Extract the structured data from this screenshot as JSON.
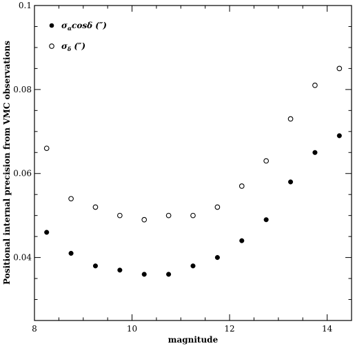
{
  "chart_data": {
    "type": "scatter",
    "xlabel": "magnitude",
    "ylabel": "Positional internal precision from VMC observations",
    "xlim": [
      8,
      14.5
    ],
    "ylim": [
      0.025,
      0.1
    ],
    "x_ticks": [
      "8",
      "10",
      "12",
      "14"
    ],
    "y_ticks": [
      "0.04",
      "0.06",
      "0.08",
      "0.1"
    ],
    "grid": false,
    "legend_position": "top-left",
    "series": [
      {
        "name": "σαcosδ (″)",
        "marker": "filled-circle",
        "x": [
          8.25,
          8.75,
          9.25,
          9.75,
          10.25,
          10.75,
          11.25,
          11.75,
          12.25,
          12.75,
          13.25,
          13.75,
          14.25
        ],
        "y": [
          0.046,
          0.041,
          0.038,
          0.037,
          0.036,
          0.036,
          0.038,
          0.04,
          0.044,
          0.049,
          0.058,
          0.065,
          0.069
        ]
      },
      {
        "name": "σδ (″)",
        "marker": "open-circle",
        "x": [
          8.25,
          8.75,
          9.25,
          9.75,
          10.25,
          10.75,
          11.25,
          11.75,
          12.25,
          12.75,
          13.25,
          13.75,
          14.25
        ],
        "y": [
          0.066,
          0.054,
          0.052,
          0.05,
          0.049,
          0.05,
          0.05,
          0.052,
          0.057,
          0.063,
          0.073,
          0.081,
          0.085
        ]
      }
    ],
    "legend": [
      {
        "symbol": "σ",
        "sub": "α",
        "rest": "cosδ (″)"
      },
      {
        "symbol": "σ",
        "sub": "δ",
        "rest": " (″)"
      }
    ]
  }
}
